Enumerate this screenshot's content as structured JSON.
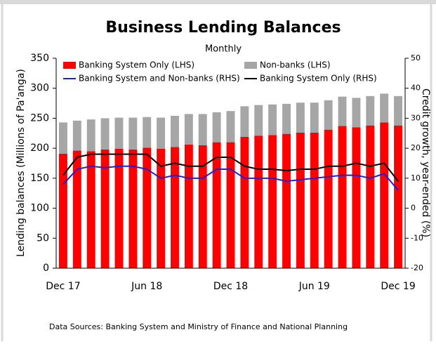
{
  "chart_data": {
    "type": "bar-line",
    "title": "Business Lending Balances",
    "subtitle": "Monthly",
    "y_label": "Lending balances (Millions of Pa'anga)",
    "y2_label": "Credit growth, year-ended (%)",
    "source": "Data Sources: Banking System and Ministry of Finance and National Planning",
    "categories": [
      "Dec 17",
      null,
      null,
      null,
      null,
      null,
      "Jun 18",
      null,
      null,
      null,
      null,
      null,
      "Dec 18",
      null,
      null,
      null,
      null,
      null,
      "Jun 19",
      null,
      null,
      null,
      null,
      null,
      "Dec 19"
    ],
    "series": [
      {
        "name": "Banking System Only (LHS)",
        "color": "#ff0000",
        "kind": "bar",
        "values": [
          191,
          196,
          195,
          198,
          199,
          198,
          201,
          199,
          202,
          206,
          205,
          210,
          210,
          219,
          221,
          222,
          224,
          226,
          226,
          231,
          237,
          235,
          238,
          243,
          238
        ]
      },
      {
        "name": "Non-banks (LHS)",
        "color": "#a6a6a6",
        "kind": "bar",
        "values": [
          52,
          50,
          53,
          52,
          52,
          53,
          51,
          52,
          52,
          51,
          52,
          50,
          52,
          51,
          51,
          51,
          50,
          50,
          50,
          49,
          49,
          49,
          49,
          48,
          49
        ]
      },
      {
        "name": "Banking System and Non-banks (RHS)",
        "color": "#1f1fd6",
        "kind": "line",
        "axis": "y2",
        "values": [
          8,
          13,
          14,
          13.5,
          14,
          14,
          13,
          10,
          11,
          10,
          10,
          13,
          13,
          10,
          10,
          10,
          9,
          9.5,
          10,
          10.5,
          11,
          11,
          10,
          11.5,
          6
        ]
      },
      {
        "name": "Banking System Only (RHS)",
        "color": "#000000",
        "kind": "line",
        "axis": "y2",
        "values": [
          11,
          17,
          18,
          18,
          18,
          18,
          18,
          14,
          15,
          14,
          14,
          17,
          17,
          14,
          13,
          13,
          12.5,
          13,
          13,
          14,
          14,
          15,
          14,
          15,
          9
        ]
      }
    ],
    "ylim": [
      0,
      350
    ],
    "yticks": [
      0,
      50,
      100,
      150,
      200,
      250,
      300,
      350
    ],
    "y2lim": [
      -20,
      50
    ],
    "y2ticks": [
      -20,
      -10,
      0,
      10,
      20,
      30,
      40,
      50
    ],
    "grid": false
  }
}
